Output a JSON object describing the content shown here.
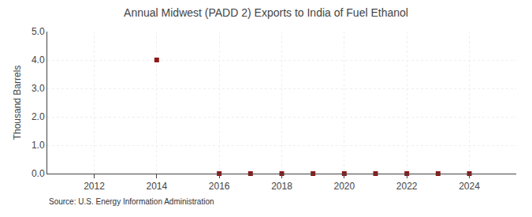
{
  "chart_data": {
    "type": "scatter",
    "title": "Annual Midwest (PADD 2) Exports to India of Fuel Ethanol",
    "ylabel": "Thousand Barrels",
    "annotations": [
      "Source: U.S. Energy Information Administration"
    ],
    "x": [
      2014,
      2016,
      2017,
      2018,
      2019,
      2020,
      2021,
      2022,
      2023,
      2024
    ],
    "values": [
      4.0,
      0.0,
      0.0,
      0.0,
      0.0,
      0.0,
      0.0,
      0.0,
      0.0,
      0.0
    ],
    "color": "#8b1a1a",
    "marker": "square",
    "xlim": [
      2010.5,
      2025.5
    ],
    "xticks": [
      2012,
      2014,
      2016,
      2018,
      2020,
      2022,
      2024
    ],
    "ylim": [
      0.0,
      5.0
    ],
    "yticks": [
      {
        "value": 0.0,
        "label": "0.0"
      },
      {
        "value": 1.0,
        "label": "1.0"
      },
      {
        "value": 2.0,
        "label": "2.0"
      },
      {
        "value": 3.0,
        "label": "3.0"
      },
      {
        "value": 4.0,
        "label": "4.0"
      },
      {
        "value": 5.0,
        "label": "5.0"
      }
    ],
    "grid": true
  }
}
